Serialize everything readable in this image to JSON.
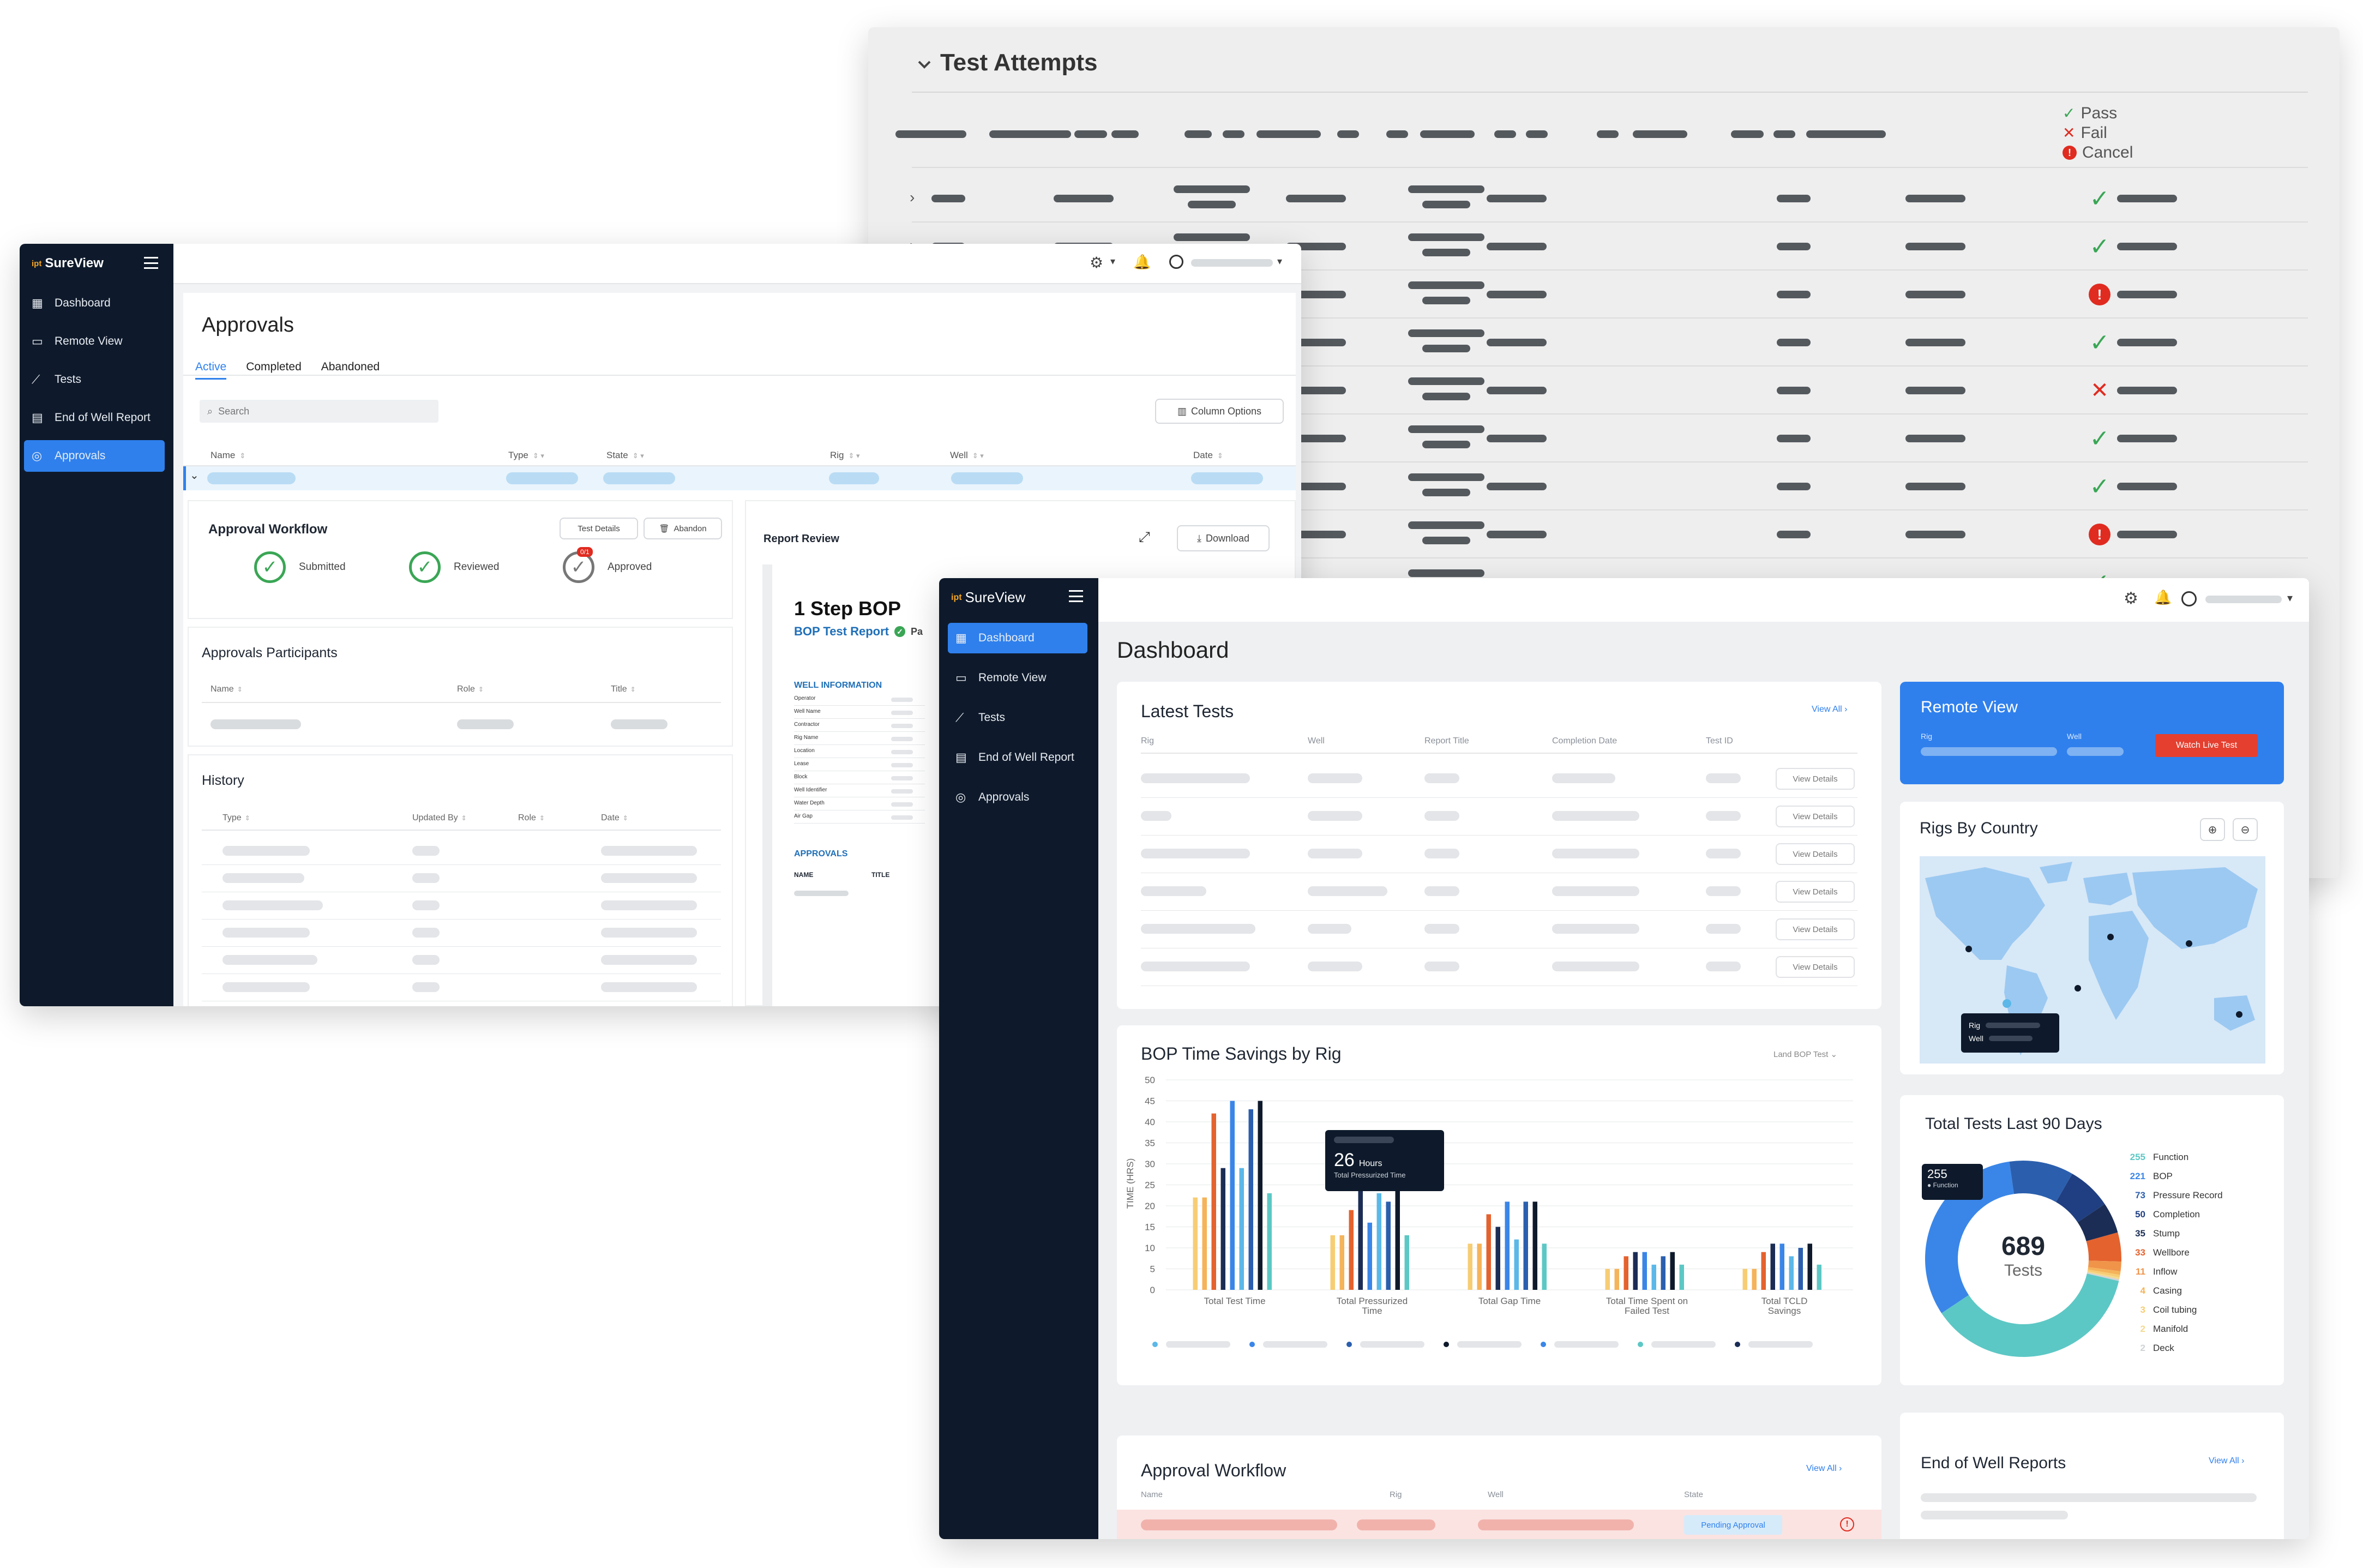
{
  "test_attempts": {
    "title": "Test Attempts",
    "legend": [
      {
        "label": "Pass",
        "icon": "check-icon",
        "color": "#3aa655"
      },
      {
        "label": "Fail",
        "icon": "x-icon",
        "color": "#e02b20"
      },
      {
        "label": "Cancel",
        "icon": "info-circle-icon",
        "color": "#e02b20"
      }
    ],
    "row_status": [
      "pass",
      "pass",
      "cancel",
      "pass",
      "fail",
      "pass",
      "pass",
      "cancel",
      "pass"
    ]
  },
  "approvals_app": {
    "brand": "SureView",
    "brand_prefix": "ipt",
    "nav": [
      {
        "label": "Dashboard",
        "icon": "grid-icon"
      },
      {
        "label": "Remote View",
        "icon": "monitor-icon"
      },
      {
        "label": "Tests",
        "icon": "chart-line-icon"
      },
      {
        "label": "End of Well Report",
        "icon": "document-icon"
      },
      {
        "label": "Approvals",
        "icon": "check-circle-icon",
        "active": true
      }
    ],
    "page_title": "Approvals",
    "tabs": [
      {
        "label": "Active",
        "active": true
      },
      {
        "label": "Completed"
      },
      {
        "label": "Abandoned"
      }
    ],
    "search_placeholder": "Search",
    "column_options_label": "Column Options",
    "columns": [
      "Name",
      "Type",
      "State",
      "Rig",
      "Well",
      "Date"
    ],
    "workflow": {
      "title": "Approval Workflow",
      "test_details_label": "Test Details",
      "abandon_label": "Abandon",
      "steps": [
        {
          "label": "Submitted"
        },
        {
          "label": "Reviewed"
        },
        {
          "label": "Approved",
          "badge": "0/1"
        }
      ]
    },
    "participants": {
      "title": "Approvals Participants",
      "columns": [
        "Name",
        "Role",
        "Title"
      ]
    },
    "history": {
      "title": "History",
      "columns": [
        "Type",
        "Updated By",
        "Role",
        "Date"
      ]
    },
    "report_review": {
      "title": "Report Review",
      "download_label": "Download",
      "report_title": "1 Step BOP",
      "report_subtitle": "BOP Test Report",
      "report_subtitle_suffix": "Pa",
      "well_info_title": "WELL INFORMATION",
      "well_info_fields": [
        "Operator",
        "Well Name",
        "Contractor",
        "Rig Name",
        "Location",
        "Lease",
        "Block",
        "Well Identifier",
        "Water Depth",
        "Air Gap"
      ],
      "approvals_title": "APPROVALS",
      "approvals_cols": [
        "NAME",
        "TITLE"
      ]
    }
  },
  "dashboard_app": {
    "brand": "SureView",
    "brand_prefix": "ipt",
    "nav": [
      {
        "label": "Dashboard",
        "icon": "grid-icon",
        "active": true
      },
      {
        "label": "Remote View",
        "icon": "monitor-icon"
      },
      {
        "label": "Tests",
        "icon": "chart-line-icon"
      },
      {
        "label": "End of Well Report",
        "icon": "document-icon"
      },
      {
        "label": "Approvals",
        "icon": "check-circle-icon"
      }
    ],
    "page_title": "Dashboard",
    "latest_tests": {
      "title": "Latest Tests",
      "view_all": "View All",
      "columns": [
        "Rig",
        "Well",
        "Report Title",
        "Completion Date",
        "Test ID"
      ],
      "row_button": "View Details",
      "row_count": 6
    },
    "remote_view": {
      "title": "Remote View",
      "rig_label": "Rig",
      "well_label": "Well",
      "watch_label": "Watch Live Test"
    },
    "rigs_by_country": {
      "title": "Rigs By Country",
      "tooltip_rig": "Rig",
      "tooltip_well": "Well"
    },
    "bop_chart": {
      "title": "BOP Time Savings by Rig",
      "filter_label": "Land BOP Test",
      "tooltip_value": "26",
      "tooltip_unit": "Hours",
      "tooltip_label": "Total Pressurized Time"
    },
    "total_tests": {
      "title": "Total Tests Last 90 Days",
      "total": "689",
      "total_label": "Tests",
      "tooltip_value": "255",
      "tooltip_label": "Function",
      "legend": [
        {
          "value": "255",
          "label": "Function",
          "color": "#5cc8c5"
        },
        {
          "value": "221",
          "label": "BOP",
          "color": "#3a86e8"
        },
        {
          "value": "73",
          "label": "Pressure Record",
          "color": "#2b5fae"
        },
        {
          "value": "50",
          "label": "Completion",
          "color": "#1f3f82"
        },
        {
          "value": "35",
          "label": "Stump",
          "color": "#1b2d55"
        },
        {
          "value": "33",
          "label": "Wellbore",
          "color": "#e4622e"
        },
        {
          "value": "11",
          "label": "Inflow",
          "color": "#f0944a"
        },
        {
          "value": "4",
          "label": "Casing",
          "color": "#f5b35a"
        },
        {
          "value": "3",
          "label": "Coil tubing",
          "color": "#f7cd74"
        },
        {
          "value": "2",
          "label": "Manifold",
          "color": "#f4d98f"
        },
        {
          "value": "2",
          "label": "Deck",
          "color": "#cfd3d6"
        }
      ]
    },
    "approval_workflow": {
      "title": "Approval Workflow",
      "view_all": "View All",
      "columns": [
        "Name",
        "Rig",
        "Well",
        "State"
      ],
      "state_badge": "Pending Approval"
    },
    "end_of_well": {
      "title": "End of Well Reports",
      "view_all": "View All"
    }
  },
  "chart_data": {
    "type": "bar",
    "title": "BOP Time Savings by Rig",
    "ylabel": "TIME (HRS)",
    "xlabel": "",
    "ylim": [
      0,
      50
    ],
    "yticks": [
      0,
      5,
      10,
      15,
      20,
      25,
      30,
      35,
      40,
      45,
      50
    ],
    "categories": [
      "Total Test Time",
      "Total Pressurized Time",
      "Total Gap Time",
      "Total Time Spent on Failed Test",
      "Total TCLD Savings"
    ],
    "series": [
      {
        "color": "#f7cd74",
        "values": [
          22,
          13,
          11,
          5,
          5
        ]
      },
      {
        "color": "#f5b35a",
        "values": [
          22,
          13,
          11,
          5,
          5
        ]
      },
      {
        "color": "#e4622e",
        "values": [
          42,
          19,
          18,
          8,
          9
        ]
      },
      {
        "color": "#1b2d55",
        "values": [
          29,
          25,
          15,
          9,
          11
        ]
      },
      {
        "color": "#3a86e8",
        "values": [
          45,
          16,
          21,
          9,
          11
        ]
      },
      {
        "color": "#5bb8e8",
        "values": [
          29,
          23,
          12,
          6,
          8
        ]
      },
      {
        "color": "#2b5fae",
        "values": [
          43,
          21,
          21,
          8,
          10
        ]
      },
      {
        "color": "#0e1a2b",
        "values": [
          45,
          26,
          21,
          9,
          11
        ]
      },
      {
        "color": "#5cc8c5",
        "values": [
          23,
          13,
          11,
          6,
          6
        ]
      }
    ],
    "grid": true,
    "legend": "bottom"
  }
}
